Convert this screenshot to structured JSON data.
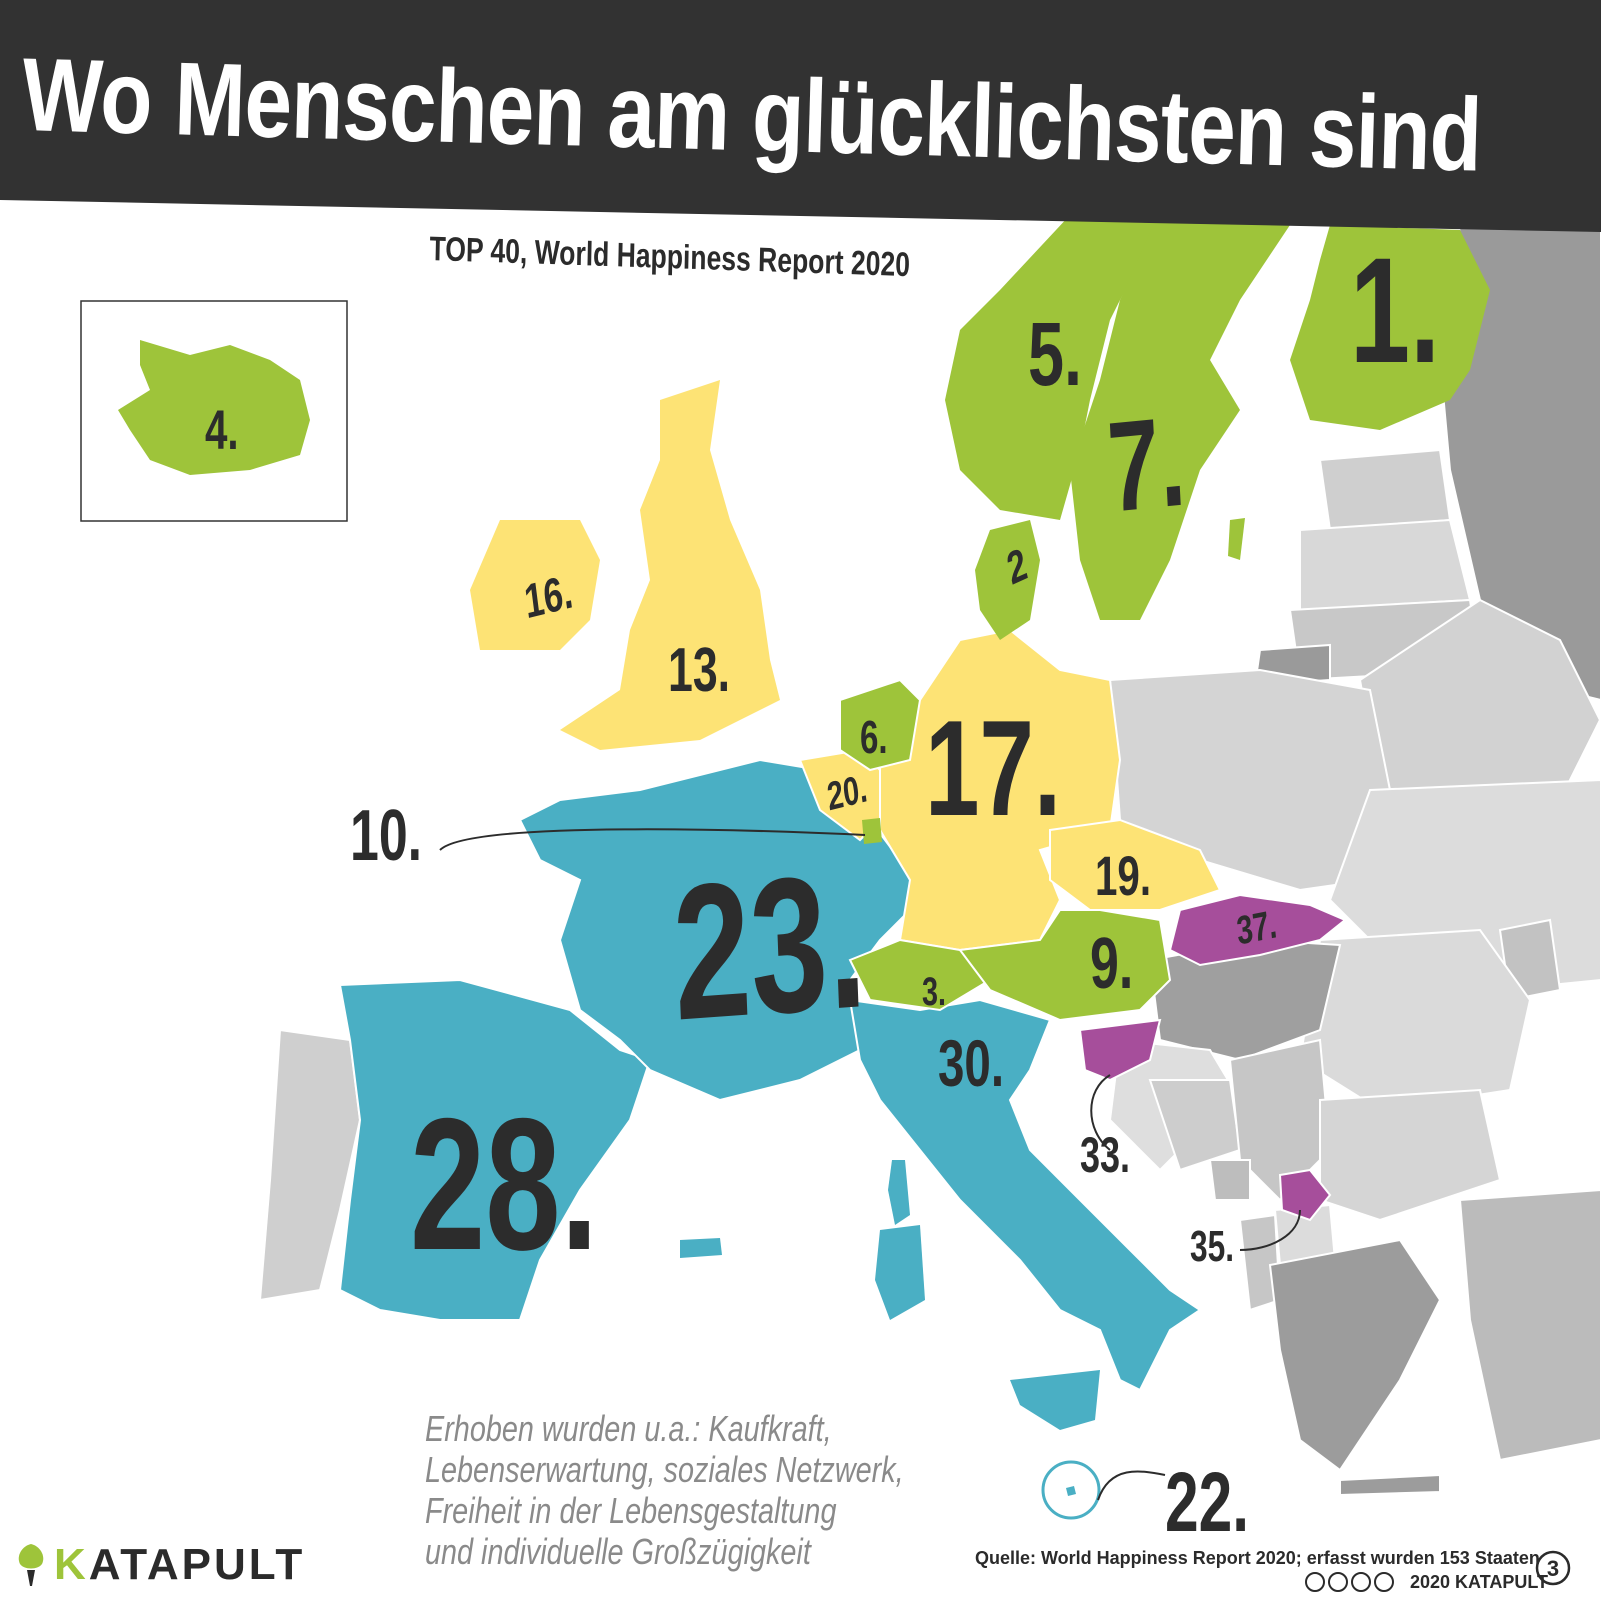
{
  "header": {
    "title": "Wo Menschen am glücklichsten sind",
    "subtitle": "TOP 40, World Happiness Report 2020"
  },
  "legend_colors": {
    "top_10": "#9ec43a",
    "rank_11_20": "#fde375",
    "rank_21_30": "#4aafc4",
    "rank_31_40": "#a64e9b",
    "not_in_top_40_light": "#d4d4d4",
    "not_in_top_40_dark": "#9a9a9a",
    "background": "#ffffff",
    "banner": "#323232"
  },
  "ranks": [
    {
      "country_icon": "finland",
      "label": "1."
    },
    {
      "country_icon": "denmark",
      "label": "2"
    },
    {
      "country_icon": "switzerland",
      "label": "3."
    },
    {
      "country_icon": "iceland",
      "label": "4."
    },
    {
      "country_icon": "norway",
      "label": "5."
    },
    {
      "country_icon": "netherlands",
      "label": "6."
    },
    {
      "country_icon": "sweden",
      "label": "7."
    },
    {
      "country_icon": "austria",
      "label": "9."
    },
    {
      "country_icon": "luxembourg",
      "label": "10."
    },
    {
      "country_icon": "united-kingdom",
      "label": "13."
    },
    {
      "country_icon": "ireland",
      "label": "16."
    },
    {
      "country_icon": "germany",
      "label": "17."
    },
    {
      "country_icon": "czechia",
      "label": "19."
    },
    {
      "country_icon": "belgium",
      "label": "20."
    },
    {
      "country_icon": "malta",
      "label": "22."
    },
    {
      "country_icon": "france",
      "label": "23."
    },
    {
      "country_icon": "spain",
      "label": "28."
    },
    {
      "country_icon": "italy",
      "label": "30."
    },
    {
      "country_icon": "slovenia",
      "label": "33."
    },
    {
      "country_icon": "kosovo",
      "label": "35."
    },
    {
      "country_icon": "slovakia",
      "label": "37."
    }
  ],
  "note": {
    "line1": "Erhoben wurden u.a.: Kaufkraft,",
    "line2": "Lebenserwartung, soziales Netzwerk,",
    "line3": "Freiheit in der Lebensgestaltung",
    "line4": "und individuelle Großzügigkeit"
  },
  "footer": {
    "brand_k": "K",
    "brand_rest": "ATAPULT",
    "source": "Quelle: World Happiness Report 2020; erfasst wurden 153 Staaten",
    "credit": "2020 KATAPULT",
    "issue_number": "3"
  }
}
